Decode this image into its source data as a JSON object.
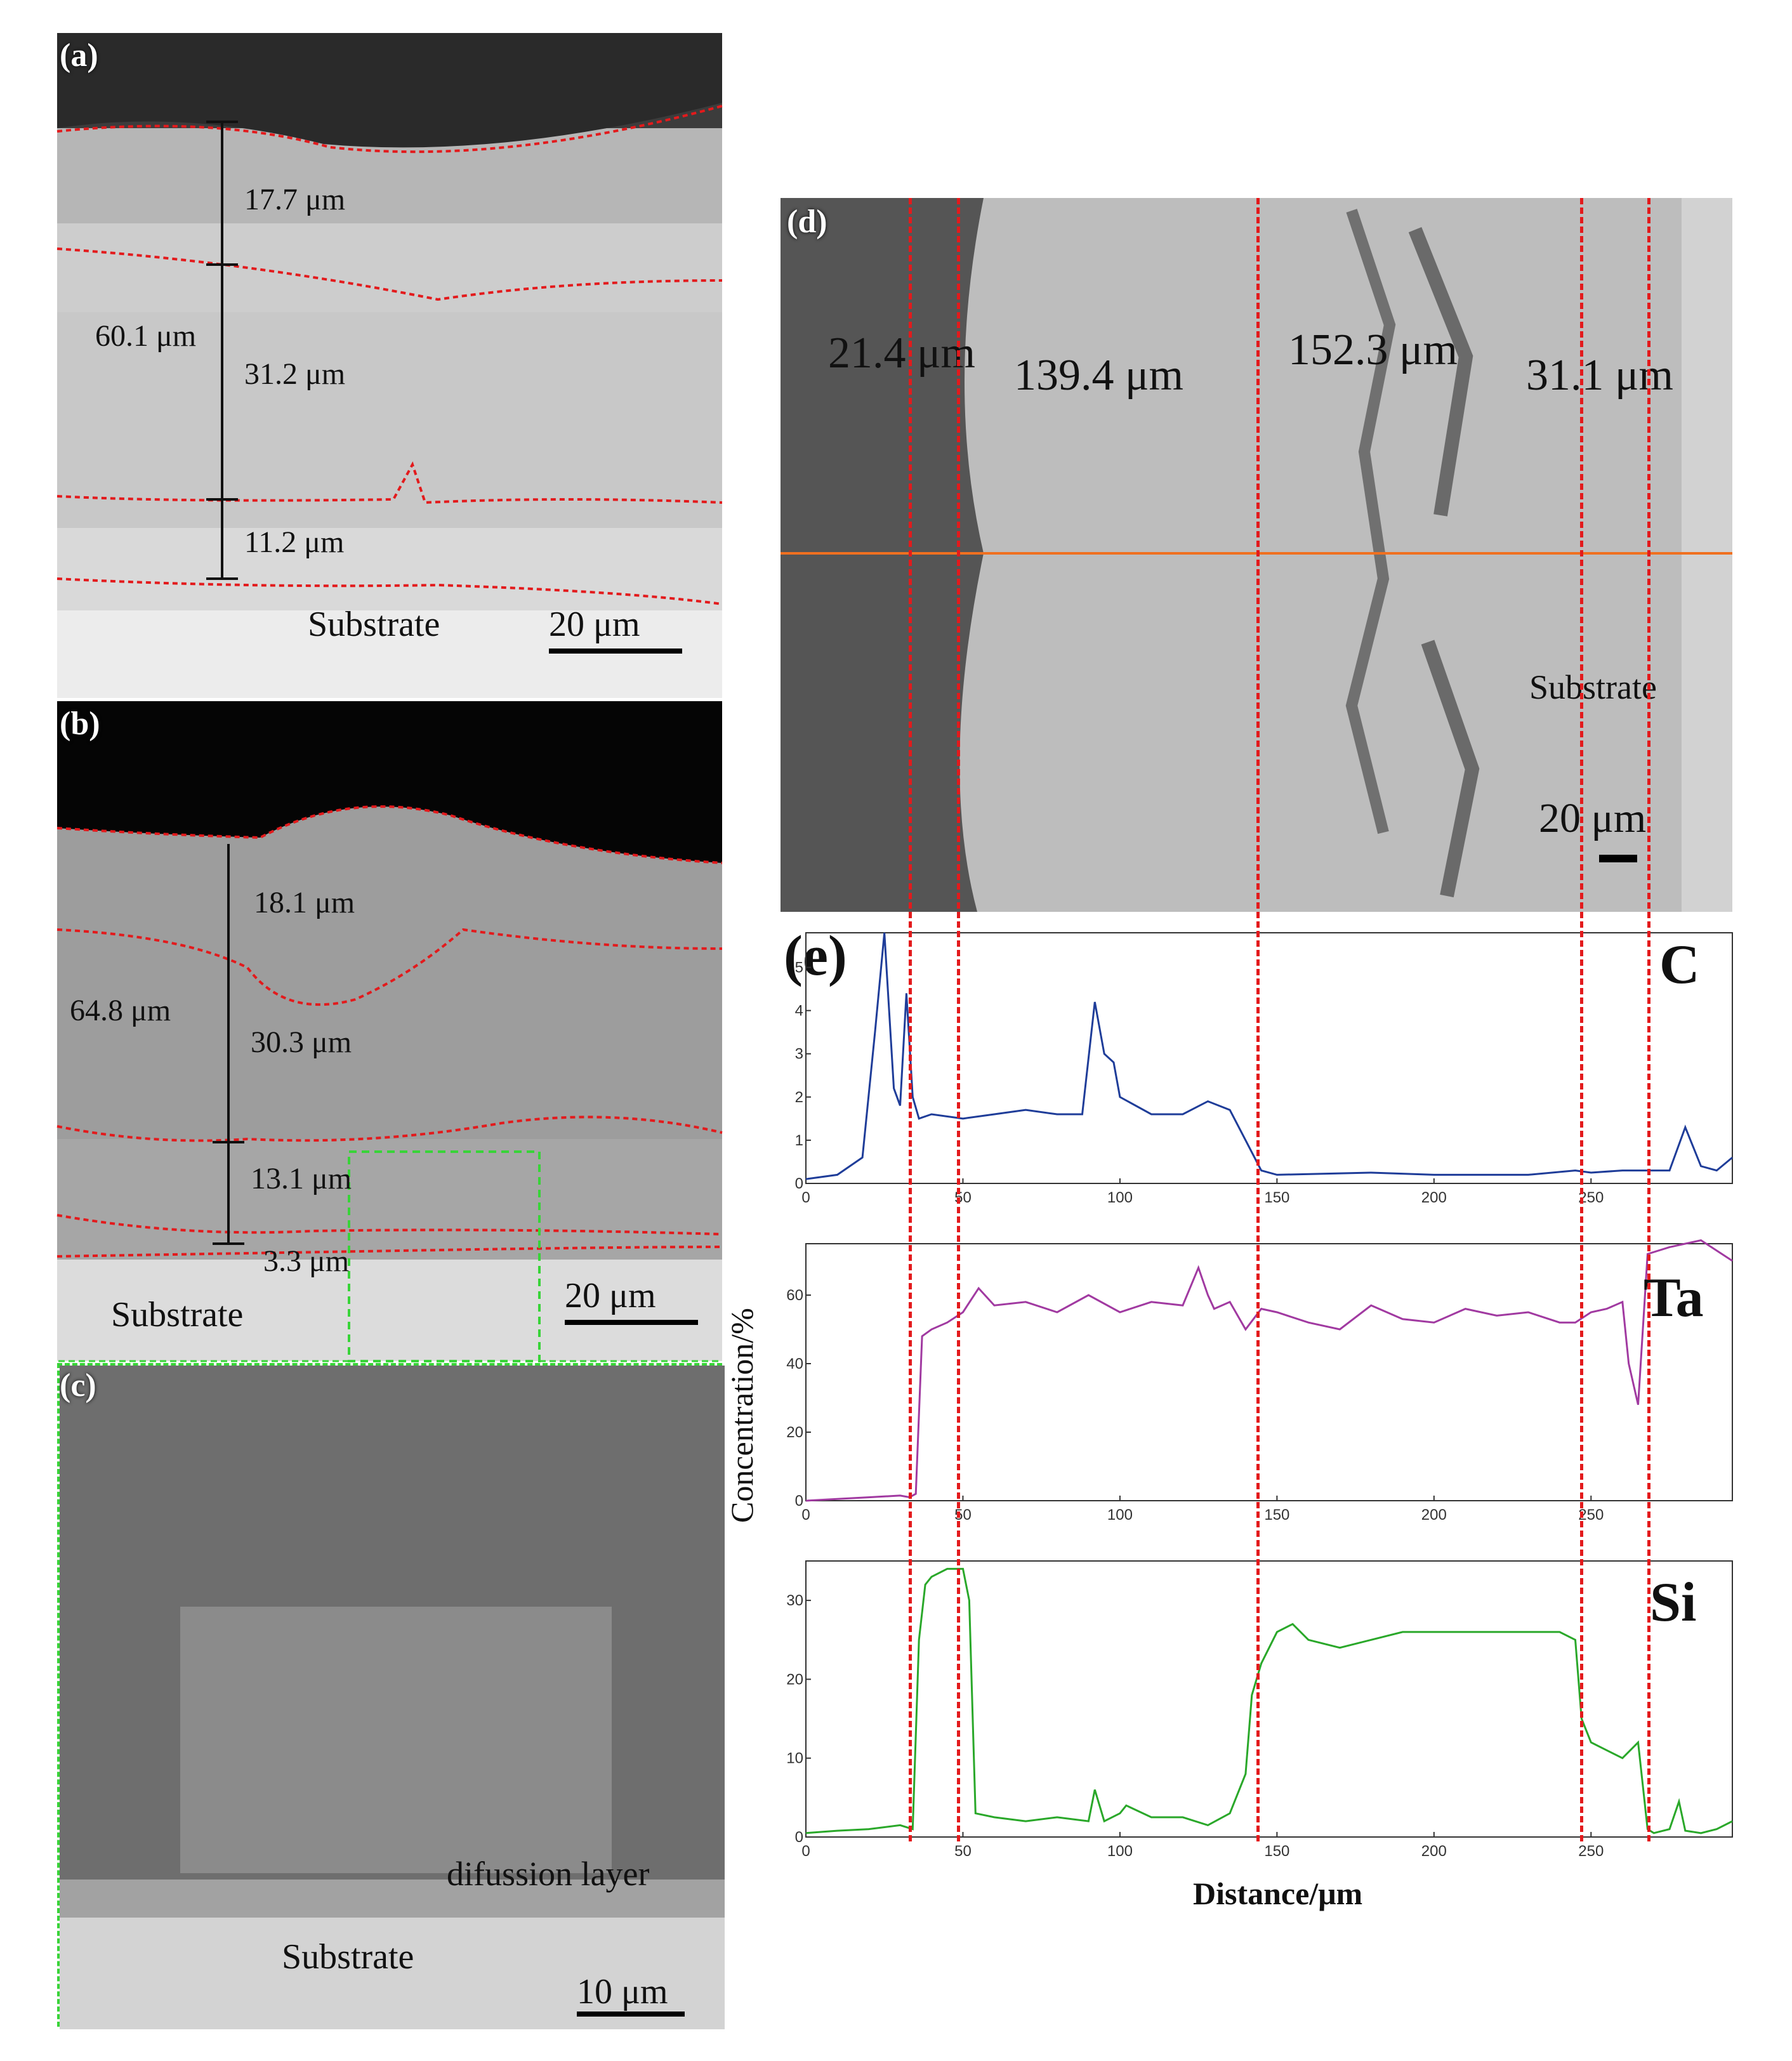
{
  "panels": {
    "a": {
      "label": "(a)",
      "total": "60.1 μm",
      "l1": "17.7 μm",
      "l2": "31.2 μm",
      "l3": "11.2 μm",
      "substrate": "Substrate",
      "scale": "20 μm"
    },
    "b": {
      "label": "(b)",
      "total": "64.8 μm",
      "l1": "18.1 μm",
      "l2": "30.3 μm",
      "l3": "13.1 μm",
      "l4": "3.3 μm",
      "substrate": "Substrate",
      "scale": "20 μm"
    },
    "c": {
      "label": "(c)",
      "diffusion": "difussion layer",
      "substrate": "Substrate",
      "scale": "10 μm"
    },
    "d": {
      "label": "(d)",
      "m1": "21.4 μm",
      "m2": "139.4 μm",
      "m3": "152.3 μm",
      "m4": "31.1 μm",
      "substrate": "Substrate",
      "scale": "20 μm"
    },
    "e": {
      "label": "(e)"
    }
  },
  "chart_data": [
    {
      "type": "line",
      "element": "C",
      "color": "#1f3d99",
      "xlim": [
        0,
        295
      ],
      "ylim": [
        0,
        5.8
      ],
      "yticks": [
        "0",
        "1",
        "2",
        "3",
        "4",
        "5"
      ],
      "xticks": [
        "0",
        "50",
        "100",
        "150",
        "200",
        "250"
      ],
      "x": [
        0,
        10,
        18,
        22,
        25,
        28,
        30,
        32,
        34,
        36,
        40,
        50,
        60,
        70,
        80,
        88,
        92,
        95,
        98,
        100,
        110,
        120,
        128,
        135,
        140,
        145,
        150,
        180,
        200,
        230,
        245,
        250,
        260,
        268,
        275,
        280,
        285,
        290,
        295
      ],
      "values": [
        0.1,
        0.2,
        0.6,
        3.5,
        5.8,
        2.2,
        1.8,
        4.4,
        2.0,
        1.5,
        1.6,
        1.5,
        1.6,
        1.7,
        1.6,
        1.6,
        4.2,
        3.0,
        2.8,
        2.0,
        1.6,
        1.6,
        1.9,
        1.7,
        1.0,
        0.3,
        0.2,
        0.25,
        0.2,
        0.2,
        0.3,
        0.25,
        0.3,
        0.3,
        0.3,
        1.3,
        0.4,
        0.3,
        0.6
      ]
    },
    {
      "type": "line",
      "element": "Ta",
      "color": "#a13aa1",
      "xlim": [
        0,
        295
      ],
      "ylim": [
        0,
        75
      ],
      "yticks": [
        "0",
        "20",
        "40",
        "60"
      ],
      "xticks": [
        "0",
        "50",
        "100",
        "150",
        "200",
        "250"
      ],
      "x": [
        0,
        10,
        20,
        30,
        33,
        35,
        37,
        40,
        45,
        50,
        55,
        60,
        70,
        80,
        90,
        100,
        110,
        120,
        125,
        128,
        130,
        135,
        140,
        145,
        150,
        160,
        170,
        180,
        190,
        200,
        210,
        220,
        230,
        240,
        245,
        250,
        255,
        260,
        262,
        265,
        268,
        275,
        285,
        295
      ],
      "values": [
        0,
        0.5,
        1,
        1.5,
        1,
        2,
        48,
        50,
        52,
        55,
        62,
        57,
        58,
        55,
        60,
        55,
        58,
        57,
        68,
        60,
        56,
        58,
        50,
        56,
        55,
        52,
        50,
        57,
        53,
        52,
        56,
        54,
        55,
        52,
        52,
        55,
        56,
        58,
        40,
        28,
        72,
        74,
        76,
        70
      ]
    },
    {
      "type": "line",
      "element": "Si",
      "color": "#2aa82a",
      "xlim": [
        0,
        295
      ],
      "ylim": [
        0,
        35
      ],
      "yticks": [
        "0",
        "10",
        "20",
        "30"
      ],
      "xticks": [
        "0",
        "50",
        "100",
        "150",
        "200",
        "250"
      ],
      "x": [
        0,
        10,
        20,
        30,
        34,
        36,
        38,
        40,
        45,
        48,
        50,
        52,
        54,
        60,
        70,
        80,
        90,
        92,
        95,
        100,
        102,
        110,
        120,
        128,
        135,
        140,
        142,
        145,
        150,
        155,
        160,
        170,
        180,
        190,
        200,
        210,
        220,
        230,
        240,
        245,
        247,
        250,
        255,
        260,
        265,
        268,
        270,
        275,
        278,
        280,
        285,
        290,
        295
      ],
      "values": [
        0.5,
        0.8,
        1,
        1.5,
        1,
        25,
        32,
        33,
        34,
        34,
        34,
        30,
        3,
        2.5,
        2,
        2.5,
        2,
        6,
        2,
        3,
        4,
        2.5,
        2.5,
        1.5,
        3,
        8,
        18,
        22,
        26,
        27,
        25,
        24,
        25,
        26,
        26,
        26,
        26,
        26,
        26,
        25,
        15,
        12,
        11,
        10,
        12,
        1,
        0.5,
        1,
        4.5,
        0.8,
        0.5,
        1,
        2
      ]
    }
  ],
  "chart_axes": {
    "ylabel": "Concentration/%",
    "xlabel": "Distance/μm"
  }
}
